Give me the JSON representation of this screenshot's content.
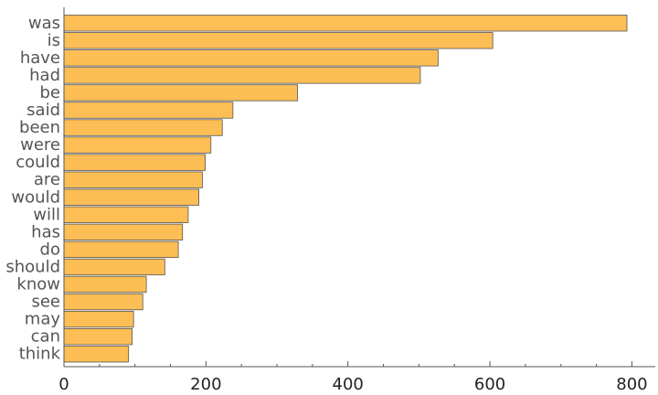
{
  "chart_data": {
    "type": "bar",
    "orientation": "horizontal",
    "title": "",
    "xlabel": "",
    "ylabel": "",
    "categories": [
      "was",
      "is",
      "have",
      "had",
      "be",
      "said",
      "been",
      "were",
      "could",
      "are",
      "would",
      "will",
      "has",
      "do",
      "should",
      "know",
      "see",
      "may",
      "can",
      "think"
    ],
    "values": [
      793,
      604,
      527,
      502,
      329,
      238,
      223,
      207,
      199,
      195,
      190,
      175,
      167,
      161,
      142,
      116,
      111,
      98,
      96,
      91
    ],
    "xlim": [
      0,
      830
    ],
    "xticks": [
      0,
      200,
      400,
      600,
      800
    ],
    "xtick_labels": [
      "0",
      "200",
      "400",
      "600",
      "800"
    ],
    "minor_tick_step": 50,
    "grid": false,
    "legend": "none",
    "colors": {
      "bar": "#fdbe55",
      "bar_edge": "#555555",
      "label": "#555555",
      "tick_label": "#222222"
    }
  }
}
